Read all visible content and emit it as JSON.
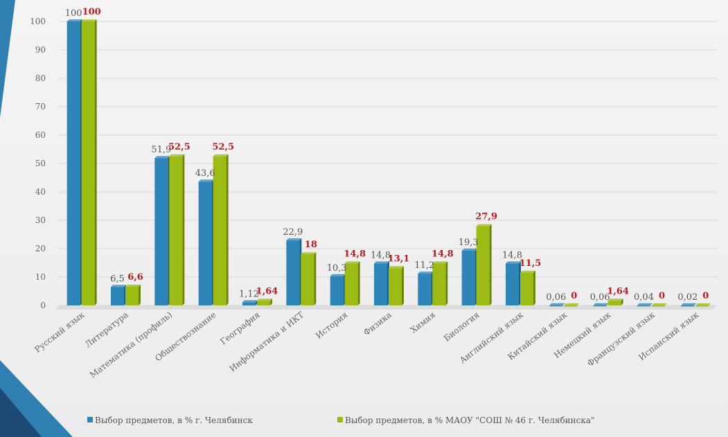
{
  "colors": {
    "series1": "#2e86b8",
    "series1_dark": "#1d5f86",
    "series2": "#9cbb14",
    "series2_dark": "#6d8608",
    "label2": "#c0181c",
    "accent_dark": "#1c4a74",
    "accent_blue": "#2f7fb3"
  },
  "chart_data": {
    "type": "bar",
    "categories": [
      "Русский язык",
      "Литература",
      "Математика (профиль)",
      "Обществознание",
      "География",
      "Информатика и ИКТ",
      "История",
      "Физика",
      "Химия",
      "Биология",
      "Английский язык",
      "Китайский язык",
      "Немецкий язык",
      "Французский язык",
      "Испанский язык"
    ],
    "series": [
      {
        "name": "Выбор предметов, в % г. Челябинск",
        "values": [
          100,
          6.5,
          51.9,
          43.6,
          1.12,
          22.9,
          10.3,
          14.8,
          11.2,
          19.3,
          14.8,
          0.06,
          0.06,
          0.04,
          0.02
        ],
        "labels": [
          "100",
          "6,5",
          "51,9",
          "43,6",
          "1,12",
          "22,9",
          "10,3",
          "14,8",
          "11,2",
          "19,3",
          "14,8",
          "0,06",
          "0,06",
          "0,04",
          "0,02"
        ]
      },
      {
        "name": "Выбор предметов, в % МАОУ \"СОШ № 46 г. Челябинска\"",
        "values": [
          100,
          6.6,
          52.5,
          52.5,
          1.64,
          18,
          14.8,
          13.1,
          14.8,
          27.9,
          11.5,
          0,
          1.64,
          0,
          0
        ],
        "labels": [
          "100",
          "6,6",
          "52,5",
          "52,5",
          "1,64",
          "18",
          "14,8",
          "13,1",
          "14,8",
          "27,9",
          "11,5",
          "0",
          "1,64",
          "0",
          "0"
        ]
      }
    ],
    "yticks": [
      "0",
      "10",
      "20",
      "30",
      "40",
      "50",
      "60",
      "70",
      "80",
      "90",
      "100"
    ],
    "ylim": [
      0,
      100
    ],
    "grid": true,
    "legend": "bottom"
  }
}
